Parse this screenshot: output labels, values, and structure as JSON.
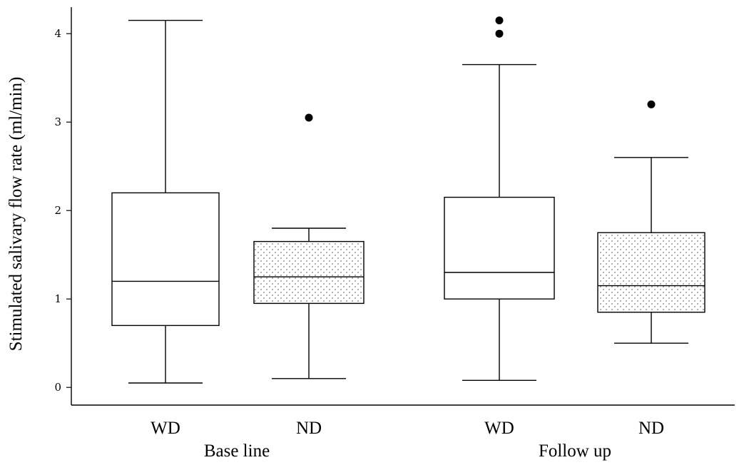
{
  "chart_data": {
    "type": "boxplot",
    "ylabel": "Stimulated salivary flow rate (ml/min)",
    "ylim": [
      -0.2,
      4.3
    ],
    "yticks": [
      0,
      1,
      2,
      3,
      4
    ],
    "groups": [
      "Base line",
      "Follow up"
    ],
    "categories": [
      "WD",
      "ND",
      "WD",
      "ND"
    ],
    "boxes": [
      {
        "group": "Base line",
        "label": "WD",
        "pattern": "plain",
        "whisker_low": 0.05,
        "q1": 0.7,
        "median": 1.2,
        "q3": 2.2,
        "whisker_high": 4.15,
        "outliers": []
      },
      {
        "group": "Base line",
        "label": "ND",
        "pattern": "dotted",
        "whisker_low": 0.1,
        "q1": 0.95,
        "median": 1.25,
        "q3": 1.65,
        "whisker_high": 1.8,
        "outliers": [
          3.05
        ]
      },
      {
        "group": "Follow up",
        "label": "WD",
        "pattern": "plain",
        "whisker_low": 0.08,
        "q1": 1.0,
        "median": 1.3,
        "q3": 2.15,
        "whisker_high": 3.65,
        "outliers": [
          4.0,
          4.15
        ]
      },
      {
        "group": "Follow up",
        "label": "ND",
        "pattern": "dotted",
        "whisker_low": 0.5,
        "q1": 0.85,
        "median": 1.15,
        "q3": 1.75,
        "whisker_high": 2.6,
        "outliers": [
          3.2
        ]
      }
    ],
    "grid": false,
    "legend": "none"
  }
}
